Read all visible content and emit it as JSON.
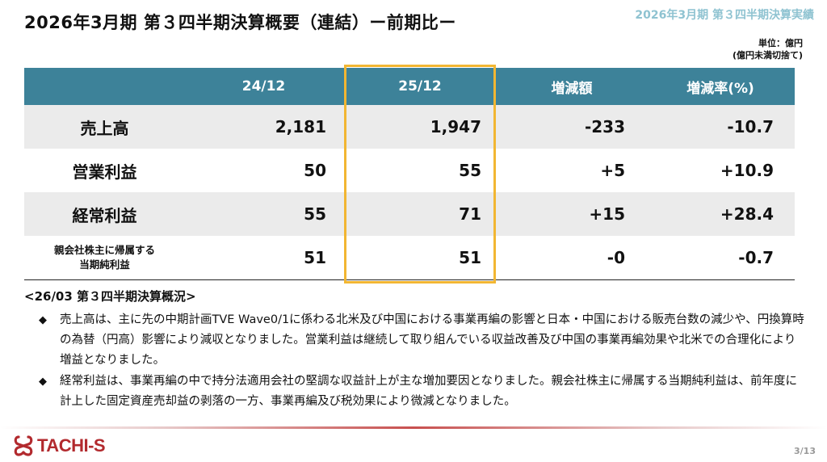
{
  "title": "2026年3月期 第３四半期決算概要（連結）ー前期比ー",
  "header_right": "2026年3月期 第３四半期決算実績",
  "unit": {
    "line1": "単位：億円",
    "line2": "(億円未満切捨て)"
  },
  "table": {
    "columns": [
      "24/12",
      "25/12",
      "増減額",
      "増減率(%)"
    ],
    "rows": [
      {
        "label": "売上高",
        "values": [
          "2,181",
          "1,947",
          "-233",
          "-10.7"
        ]
      },
      {
        "label": "営業利益",
        "values": [
          "50",
          "55",
          "+5",
          "+10.9"
        ]
      },
      {
        "label": "経常利益",
        "values": [
          "55",
          "71",
          "+15",
          "+28.4"
        ]
      },
      {
        "label_line1": "親会社株主に帰属する",
        "label_line2": "当期純利益",
        "values": [
          "51",
          "51",
          "-0",
          "-0.7"
        ]
      }
    ]
  },
  "summary": {
    "heading": "<26/03 第３四半期決算概況>",
    "bullets": [
      "売上高は、主に先の中期計画TVE Wave0/1に係わる北米及び中国における事業再編の影響と日本・中国における販売台数の減少や、円換算時の為替（円高）影響により減収となりました。営業利益は継続して取り組んでいる収益改善及び中国の事業再編効果や北米での合理化により増益となりました。",
      "経常利益は、事業再編の中で持分法適用会社の堅調な収益計上が主な増加要因となりました。親会社株主に帰属する当期純利益は、前年度に計上した固定資産売却益の剥落の一方、事業再編及び税効果により微減となりました。"
    ]
  },
  "footer": {
    "logo_text": "TACHI-S",
    "page": "3/13"
  },
  "colors": {
    "header_bg": "#3d8299",
    "highlight": "#f2b632",
    "brand": "#b22a2e",
    "row_shade": "#ebebeb",
    "header_right": "#8fc3d1"
  }
}
